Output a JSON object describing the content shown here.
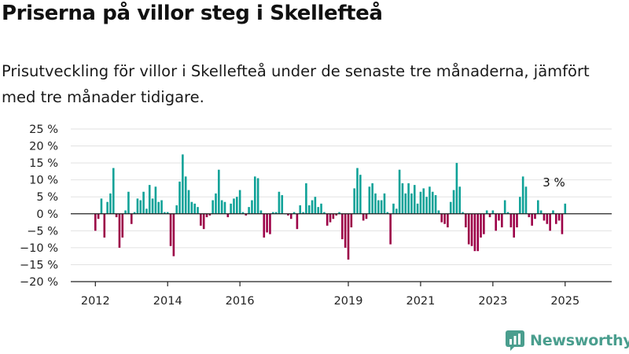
{
  "title": "Priserna på villor steg i Skellefteå",
  "subtitle": "Prisutveckling för villor i Skellefteå under de senaste tre månaderna, jämfört med tre månader tidigare.",
  "logo": {
    "text": "Newsworthy",
    "icon": "newsworthy-chart-icon"
  },
  "colors": {
    "positive": "#0fa298",
    "negative": "#9c0047",
    "grid": "#e2e2e2",
    "axis": "#222222",
    "logo": "#4a9e8e"
  },
  "chart_data": {
    "type": "bar",
    "ylabel": "",
    "xlabel": "",
    "ylim": [
      -20,
      25
    ],
    "yticks": [
      25,
      20,
      15,
      10,
      5,
      0,
      -5,
      -10,
      -15,
      -20
    ],
    "ytick_labels": [
      "25 %",
      "20 %",
      "15 %",
      "10 %",
      "5 %",
      "0 %",
      "−5 %",
      "−10 %",
      "−15 %",
      "−20 %"
    ],
    "xticks": [
      "2012",
      "2014",
      "2016",
      "2019",
      "2021",
      "2023",
      "2025"
    ],
    "grid": true,
    "x_start": "2012-01",
    "x_end": "2025-05",
    "values": [
      -5,
      -1.5,
      4.5,
      -7,
      3.5,
      6,
      13.5,
      -1,
      -10,
      -7,
      1,
      6.5,
      -3,
      0.5,
      4.5,
      4,
      6.5,
      1.5,
      8.5,
      4.5,
      8,
      3.5,
      4,
      0.5,
      0.5,
      -9.5,
      -12.5,
      2.5,
      9.5,
      17.5,
      11,
      7,
      3.5,
      3,
      2,
      -3.5,
      -4.5,
      -1,
      -0.5,
      4,
      6,
      13,
      4,
      3.5,
      -1,
      3,
      4.5,
      5,
      7,
      0.5,
      -0.5,
      2,
      4,
      11,
      10.5,
      1,
      -7,
      -5.5,
      -6,
      0.5,
      0.5,
      6.5,
      5.5,
      0,
      -0.5,
      -1.5,
      0.5,
      -4.5,
      2.5,
      0.5,
      9,
      2.5,
      4,
      5,
      2,
      3,
      0.5,
      -3.5,
      -2.5,
      -1.5,
      -0.5,
      0.5,
      -7.5,
      -10,
      -13.5,
      -4,
      7.5,
      13.5,
      11.5,
      -2,
      -1.5,
      8,
      9,
      6,
      4,
      4,
      6,
      0.5,
      -9,
      3,
      1.5,
      13,
      9,
      6,
      9,
      6,
      8.5,
      3,
      6.5,
      7.5,
      5,
      8,
      6.5,
      5.5,
      1,
      -2.5,
      -3,
      -4,
      3.5,
      7,
      15,
      8,
      0.5,
      -4,
      -9,
      -9.5,
      -11,
      -11,
      -7,
      -6,
      1,
      -1,
      1,
      -5,
      -2,
      -4,
      4,
      0.5,
      -4,
      -7,
      -4,
      5,
      11,
      8,
      -1,
      -3.5,
      -1.5,
      4,
      1,
      -2,
      -3,
      -5,
      1,
      -3,
      -2,
      -6,
      3
    ],
    "annotations": [
      {
        "text": "3 %",
        "target": "last"
      }
    ]
  }
}
